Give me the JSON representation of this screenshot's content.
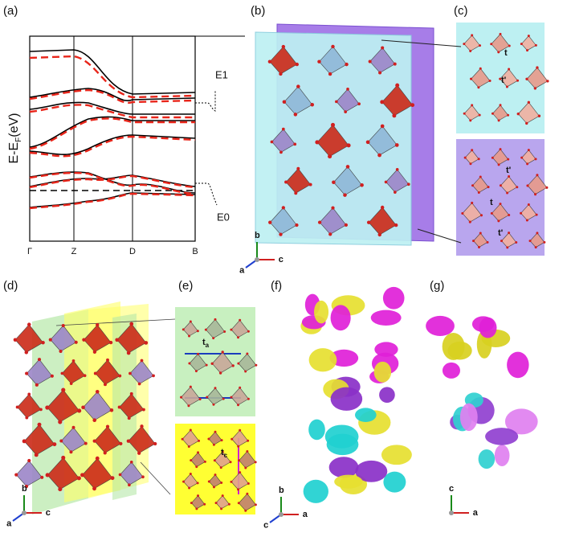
{
  "panels": {
    "a": "(a)",
    "b": "(b)",
    "c": "(c)",
    "d": "(d)",
    "e": "(e)",
    "f": "(f)",
    "g": "(g)"
  },
  "band_plot": {
    "ylabel": "E-E",
    "ylabel_sub": "F",
    "ylabel_unit": "(eV)",
    "kpoints": [
      "Γ",
      "Z",
      "D",
      "B"
    ],
    "annotations": [
      "E1",
      "E0"
    ]
  },
  "hoppings": {
    "c_top": [
      "t",
      "t'"
    ],
    "c_bottom": [
      "t",
      "t'",
      "t'"
    ],
    "e_top": "t",
    "e_top_sub": "a",
    "e_bottom": "t",
    "e_bottom_sub": "c"
  },
  "triads": {
    "b": [
      "b",
      "c",
      "a"
    ],
    "d": [
      "b",
      "c",
      "a"
    ],
    "f": [
      "b",
      "a",
      "c"
    ],
    "g": [
      "c",
      "a"
    ]
  }
}
